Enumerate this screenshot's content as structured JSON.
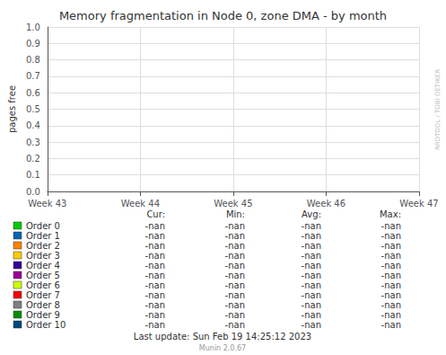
{
  "chart_data": {
    "type": "line",
    "title": "Memory fragmentation in Node 0, zone DMA - by month",
    "ylabel": "pages free",
    "categories": [
      "Week 43",
      "Week 44",
      "Week 45",
      "Week 46",
      "Week 47"
    ],
    "series": [
      {
        "name": "Order 0",
        "color": "#00cc00",
        "values": [
          null,
          null,
          null,
          null,
          null
        ],
        "stats": [
          "-nan",
          "-nan",
          "-nan",
          "-nan"
        ]
      },
      {
        "name": "Order 1",
        "color": "#0066b3",
        "values": [
          null,
          null,
          null,
          null,
          null
        ],
        "stats": [
          "-nan",
          "-nan",
          "-nan",
          "-nan"
        ]
      },
      {
        "name": "Order 2",
        "color": "#ff8000",
        "values": [
          null,
          null,
          null,
          null,
          null
        ],
        "stats": [
          "-nan",
          "-nan",
          "-nan",
          "-nan"
        ]
      },
      {
        "name": "Order 3",
        "color": "#ffcc00",
        "values": [
          null,
          null,
          null,
          null,
          null
        ],
        "stats": [
          "-nan",
          "-nan",
          "-nan",
          "-nan"
        ]
      },
      {
        "name": "Order 4",
        "color": "#330099",
        "values": [
          null,
          null,
          null,
          null,
          null
        ],
        "stats": [
          "-nan",
          "-nan",
          "-nan",
          "-nan"
        ]
      },
      {
        "name": "Order 5",
        "color": "#990099",
        "values": [
          null,
          null,
          null,
          null,
          null
        ],
        "stats": [
          "-nan",
          "-nan",
          "-nan",
          "-nan"
        ]
      },
      {
        "name": "Order 6",
        "color": "#ccff00",
        "values": [
          null,
          null,
          null,
          null,
          null
        ],
        "stats": [
          "-nan",
          "-nan",
          "-nan",
          "-nan"
        ]
      },
      {
        "name": "Order 7",
        "color": "#ff0000",
        "values": [
          null,
          null,
          null,
          null,
          null
        ],
        "stats": [
          "-nan",
          "-nan",
          "-nan",
          "-nan"
        ]
      },
      {
        "name": "Order 8",
        "color": "#808080",
        "values": [
          null,
          null,
          null,
          null,
          null
        ],
        "stats": [
          "-nan",
          "-nan",
          "-nan",
          "-nan"
        ]
      },
      {
        "name": "Order 9",
        "color": "#008f00",
        "values": [
          null,
          null,
          null,
          null,
          null
        ],
        "stats": [
          "-nan",
          "-nan",
          "-nan",
          "-nan"
        ]
      },
      {
        "name": "Order 10",
        "color": "#00487d",
        "values": [
          null,
          null,
          null,
          null,
          null
        ],
        "stats": [
          "-nan",
          "-nan",
          "-nan",
          "-nan"
        ]
      }
    ],
    "table_headers": [
      "Cur:",
      "Min:",
      "Avg:",
      "Max:"
    ],
    "ylim": [
      0.0,
      1.0
    ],
    "yticks": [
      {
        "value": 0.0,
        "label": "0.0"
      },
      0.1,
      0.2,
      0.3,
      0.4,
      0.5,
      0.6,
      0.7,
      0.8,
      0.9,
      {
        "value": 1.0,
        "label": "1.0"
      }
    ],
    "grid": true,
    "watermark": "RRDTOOL / TOBI OETIKER",
    "last_update": "Last update: Sun Feb 19 14:25:12 2023",
    "version": "Munin 2.0.67"
  }
}
